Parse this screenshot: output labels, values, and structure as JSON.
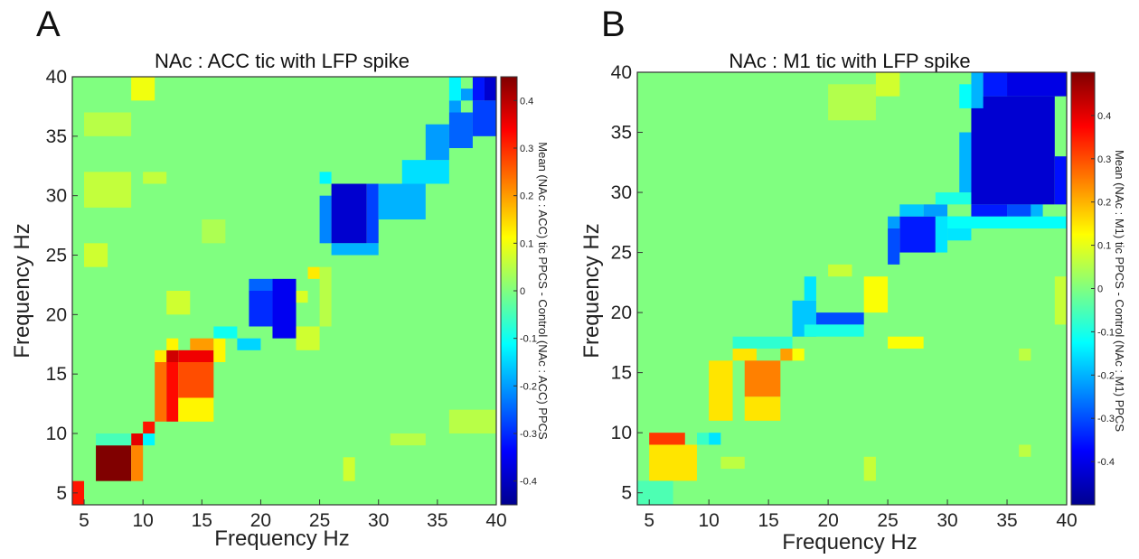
{
  "panels": [
    {
      "letter": "A",
      "title": "NAc : ACC tic with LFP spike",
      "xlabel": "Frequency Hz",
      "ylabel": "Frequency Hz",
      "colorbar_label": "Mean (NAc : ACC) tic PPCS - Control (NAc : ACC) PPCS"
    },
    {
      "letter": "B",
      "title": "NAc : M1 tic with LFP spike",
      "xlabel": "Frequency Hz",
      "ylabel": "Frequency Hz",
      "colorbar_label": "Mean (NAc : M1) tic PPCS - Control (NAc : M1) PPCS"
    }
  ],
  "chart_data": [
    {
      "type": "heatmap",
      "title": "NAc : ACC tic with LFP spike",
      "xlabel": "Frequency Hz",
      "ylabel": "Frequency Hz",
      "xlim": [
        4,
        40
      ],
      "ylim": [
        4,
        40
      ],
      "xticks": [
        "5",
        "10",
        "15",
        "20",
        "25",
        "30",
        "35",
        "40"
      ],
      "yticks": [
        "5",
        "10",
        "15",
        "20",
        "25",
        "30",
        "35",
        "40"
      ],
      "clim": [
        -0.45,
        0.45
      ],
      "colorbar_ticks": [
        "0.4",
        "0.3",
        "0.2",
        "0.1",
        "0",
        "-0.1",
        "-0.2",
        "-0.3",
        "-0.4"
      ],
      "colormap": "jet",
      "grid": false,
      "background_value": 0.0,
      "regions": [
        {
          "x": [
            4,
            5
          ],
          "y": [
            4,
            6
          ],
          "value": 0.32
        },
        {
          "x": [
            6,
            9
          ],
          "y": [
            6,
            9
          ],
          "value": 0.45
        },
        {
          "x": [
            9,
            10
          ],
          "y": [
            6,
            9
          ],
          "value": 0.22
        },
        {
          "x": [
            9,
            10
          ],
          "y": [
            9,
            10
          ],
          "value": 0.36
        },
        {
          "x": [
            6,
            9
          ],
          "y": [
            9,
            10
          ],
          "value": -0.05
        },
        {
          "x": [
            10,
            11
          ],
          "y": [
            9,
            10
          ],
          "value": -0.12
        },
        {
          "x": [
            10,
            11
          ],
          "y": [
            10,
            11
          ],
          "value": 0.32
        },
        {
          "x": [
            11,
            12
          ],
          "y": [
            11,
            16
          ],
          "value": 0.24
        },
        {
          "x": [
            12,
            13
          ],
          "y": [
            11,
            16
          ],
          "value": 0.33
        },
        {
          "x": [
            13,
            16
          ],
          "y": [
            11,
            13
          ],
          "value": 0.12
        },
        {
          "x": [
            13,
            16
          ],
          "y": [
            13,
            16
          ],
          "value": 0.27
        },
        {
          "x": [
            11,
            12
          ],
          "y": [
            16,
            17
          ],
          "value": 0.13
        },
        {
          "x": [
            12,
            13
          ],
          "y": [
            16,
            17
          ],
          "value": 0.38
        },
        {
          "x": [
            13,
            16
          ],
          "y": [
            16,
            17
          ],
          "value": 0.35
        },
        {
          "x": [
            12,
            13
          ],
          "y": [
            17,
            18
          ],
          "value": 0.12
        },
        {
          "x": [
            14,
            16
          ],
          "y": [
            17,
            18
          ],
          "value": 0.2
        },
        {
          "x": [
            16,
            17
          ],
          "y": [
            16,
            18
          ],
          "value": 0.12
        },
        {
          "x": [
            16,
            18
          ],
          "y": [
            18,
            19
          ],
          "value": -0.1
        },
        {
          "x": [
            18,
            20
          ],
          "y": [
            17,
            18
          ],
          "value": -0.15
        },
        {
          "x": [
            19,
            21
          ],
          "y": [
            19,
            22
          ],
          "value": -0.3
        },
        {
          "x": [
            21,
            23
          ],
          "y": [
            18,
            23
          ],
          "value": -0.35
        },
        {
          "x": [
            19,
            21
          ],
          "y": [
            22,
            23
          ],
          "value": -0.25
        },
        {
          "x": [
            23,
            25
          ],
          "y": [
            17,
            19
          ],
          "value": 0.07
        },
        {
          "x": [
            25,
            26
          ],
          "y": [
            19,
            24
          ],
          "value": 0.05
        },
        {
          "x": [
            24,
            25
          ],
          "y": [
            23,
            24
          ],
          "value": 0.13
        },
        {
          "x": [
            25,
            26
          ],
          "y": [
            26,
            30
          ],
          "value": -0.22
        },
        {
          "x": [
            26,
            29
          ],
          "y": [
            26,
            31
          ],
          "value": -0.38
        },
        {
          "x": [
            29,
            30
          ],
          "y": [
            26,
            31
          ],
          "value": -0.28
        },
        {
          "x": [
            26,
            30
          ],
          "y": [
            25,
            26
          ],
          "value": -0.18
        },
        {
          "x": [
            25,
            26
          ],
          "y": [
            31,
            32
          ],
          "value": -0.12
        },
        {
          "x": [
            30,
            34
          ],
          "y": [
            28,
            31
          ],
          "value": -0.18
        },
        {
          "x": [
            32,
            36
          ],
          "y": [
            31,
            33
          ],
          "value": -0.14
        },
        {
          "x": [
            34,
            36
          ],
          "y": [
            33,
            36
          ],
          "value": -0.2
        },
        {
          "x": [
            36,
            38
          ],
          "y": [
            34,
            37
          ],
          "value": -0.25
        },
        {
          "x": [
            38,
            40
          ],
          "y": [
            35,
            38
          ],
          "value": -0.28
        },
        {
          "x": [
            36,
            37
          ],
          "y": [
            37,
            38
          ],
          "value": -0.2
        },
        {
          "x": [
            37,
            38
          ],
          "y": [
            38,
            39
          ],
          "value": -0.2
        },
        {
          "x": [
            38,
            39
          ],
          "y": [
            38,
            40
          ],
          "value": -0.32
        },
        {
          "x": [
            39,
            40
          ],
          "y": [
            38,
            40
          ],
          "value": -0.38
        },
        {
          "x": [
            36,
            37
          ],
          "y": [
            38,
            40
          ],
          "value": -0.12
        },
        {
          "x": [
            9,
            11
          ],
          "y": [
            38,
            40
          ],
          "value": 0.1
        },
        {
          "x": [
            5,
            9
          ],
          "y": [
            35,
            37
          ],
          "value": 0.05
        },
        {
          "x": [
            5,
            9
          ],
          "y": [
            29,
            32
          ],
          "value": 0.06
        },
        {
          "x": [
            5,
            7
          ],
          "y": [
            24,
            26
          ],
          "value": 0.07
        },
        {
          "x": [
            12,
            14
          ],
          "y": [
            20,
            22
          ],
          "value": 0.07
        },
        {
          "x": [
            23,
            24
          ],
          "y": [
            21,
            22
          ],
          "value": 0.08
        },
        {
          "x": [
            10,
            12
          ],
          "y": [
            31,
            32
          ],
          "value": 0.06
        },
        {
          "x": [
            15,
            17
          ],
          "y": [
            26,
            28
          ],
          "value": 0.04
        },
        {
          "x": [
            27,
            28
          ],
          "y": [
            6,
            8
          ],
          "value": 0.07
        },
        {
          "x": [
            31,
            34
          ],
          "y": [
            9,
            10
          ],
          "value": 0.05
        },
        {
          "x": [
            36,
            40
          ],
          "y": [
            10,
            12
          ],
          "value": 0.05
        }
      ]
    },
    {
      "type": "heatmap",
      "title": "NAc : M1 tic with LFP spike",
      "xlabel": "Frequency Hz",
      "ylabel": "Frequency Hz",
      "xlim": [
        4,
        40
      ],
      "ylim": [
        4,
        40
      ],
      "xticks": [
        "5",
        "10",
        "15",
        "20",
        "25",
        "30",
        "35",
        "40"
      ],
      "yticks": [
        "5",
        "10",
        "15",
        "20",
        "25",
        "30",
        "35",
        "40"
      ],
      "clim": [
        -0.5,
        0.5
      ],
      "colorbar_ticks": [
        "0.4",
        "0.3",
        "0.2",
        "0.1",
        "0",
        "-0.1",
        "-0.2",
        "-0.3",
        "-0.4"
      ],
      "colormap": "jet",
      "grid": false,
      "background_value": 0.0,
      "regions": [
        {
          "x": [
            4,
            7
          ],
          "y": [
            4,
            6
          ],
          "value": -0.05
        },
        {
          "x": [
            5,
            9
          ],
          "y": [
            6,
            9
          ],
          "value": 0.15
        },
        {
          "x": [
            5,
            8
          ],
          "y": [
            9,
            10
          ],
          "value": 0.32
        },
        {
          "x": [
            9,
            10
          ],
          "y": [
            9,
            10
          ],
          "value": -0.07
        },
        {
          "x": [
            10,
            11
          ],
          "y": [
            9,
            10
          ],
          "value": -0.15
        },
        {
          "x": [
            10,
            12
          ],
          "y": [
            11,
            16
          ],
          "value": 0.15
        },
        {
          "x": [
            12,
            14
          ],
          "y": [
            16,
            17
          ],
          "value": 0.15
        },
        {
          "x": [
            13,
            16
          ],
          "y": [
            11,
            13
          ],
          "value": 0.15
        },
        {
          "x": [
            13,
            16
          ],
          "y": [
            13,
            16
          ],
          "value": 0.25
        },
        {
          "x": [
            16,
            17
          ],
          "y": [
            16,
            17
          ],
          "value": 0.22
        },
        {
          "x": [
            17,
            18
          ],
          "y": [
            16,
            17
          ],
          "value": 0.12
        },
        {
          "x": [
            12,
            17
          ],
          "y": [
            17,
            18
          ],
          "value": -0.08
        },
        {
          "x": [
            17,
            19
          ],
          "y": [
            18,
            21
          ],
          "value": -0.18
        },
        {
          "x": [
            18,
            19
          ],
          "y": [
            21,
            23
          ],
          "value": -0.15
        },
        {
          "x": [
            19,
            23
          ],
          "y": [
            19,
            20
          ],
          "value": -0.3
        },
        {
          "x": [
            18,
            23
          ],
          "y": [
            18,
            19
          ],
          "value": -0.1
        },
        {
          "x": [
            23,
            25
          ],
          "y": [
            20,
            23
          ],
          "value": 0.12
        },
        {
          "x": [
            25,
            28
          ],
          "y": [
            17,
            18
          ],
          "value": 0.12
        },
        {
          "x": [
            25,
            26
          ],
          "y": [
            24,
            27
          ],
          "value": -0.3
        },
        {
          "x": [
            26,
            29
          ],
          "y": [
            25,
            28
          ],
          "value": -0.35
        },
        {
          "x": [
            25,
            26
          ],
          "y": [
            27,
            28
          ],
          "value": -0.22
        },
        {
          "x": [
            26,
            28
          ],
          "y": [
            28,
            29
          ],
          "value": -0.18
        },
        {
          "x": [
            28,
            30
          ],
          "y": [
            28,
            29
          ],
          "value": -0.22
        },
        {
          "x": [
            29,
            30
          ],
          "y": [
            25,
            28
          ],
          "value": -0.15
        },
        {
          "x": [
            30,
            32
          ],
          "y": [
            26,
            28
          ],
          "value": -0.15
        },
        {
          "x": [
            30,
            40
          ],
          "y": [
            27,
            28
          ],
          "value": -0.12
        },
        {
          "x": [
            29,
            32
          ],
          "y": [
            29,
            30
          ],
          "value": -0.1
        },
        {
          "x": [
            31,
            32
          ],
          "y": [
            30,
            35
          ],
          "value": -0.2
        },
        {
          "x": [
            32,
            35
          ],
          "y": [
            28,
            29
          ],
          "value": -0.35
        },
        {
          "x": [
            35,
            37
          ],
          "y": [
            28,
            29
          ],
          "value": -0.3
        },
        {
          "x": [
            37,
            38
          ],
          "y": [
            28,
            29
          ],
          "value": -0.2
        },
        {
          "x": [
            32,
            39
          ],
          "y": [
            29,
            38
          ],
          "value": -0.42
        },
        {
          "x": [
            39,
            40
          ],
          "y": [
            29,
            33
          ],
          "value": -0.36
        },
        {
          "x": [
            32,
            33
          ],
          "y": [
            37,
            40
          ],
          "value": -0.2
        },
        {
          "x": [
            33,
            35
          ],
          "y": [
            38,
            40
          ],
          "value": -0.35
        },
        {
          "x": [
            35,
            40
          ],
          "y": [
            38,
            40
          ],
          "value": -0.4
        },
        {
          "x": [
            31,
            32
          ],
          "y": [
            37,
            39
          ],
          "value": -0.12
        },
        {
          "x": [
            20,
            24
          ],
          "y": [
            36,
            39
          ],
          "value": 0.05
        },
        {
          "x": [
            24,
            26
          ],
          "y": [
            38,
            40
          ],
          "value": 0.08
        },
        {
          "x": [
            20,
            22
          ],
          "y": [
            23,
            24
          ],
          "value": 0.07
        },
        {
          "x": [
            39,
            40
          ],
          "y": [
            19,
            23
          ],
          "value": 0.07
        },
        {
          "x": [
            36,
            37
          ],
          "y": [
            16,
            17
          ],
          "value": 0.06
        },
        {
          "x": [
            23,
            24
          ],
          "y": [
            6,
            8
          ],
          "value": 0.07
        },
        {
          "x": [
            11,
            13
          ],
          "y": [
            7,
            8
          ],
          "value": 0.06
        },
        {
          "x": [
            36,
            37
          ],
          "y": [
            8,
            9
          ],
          "value": 0.06
        }
      ]
    }
  ]
}
